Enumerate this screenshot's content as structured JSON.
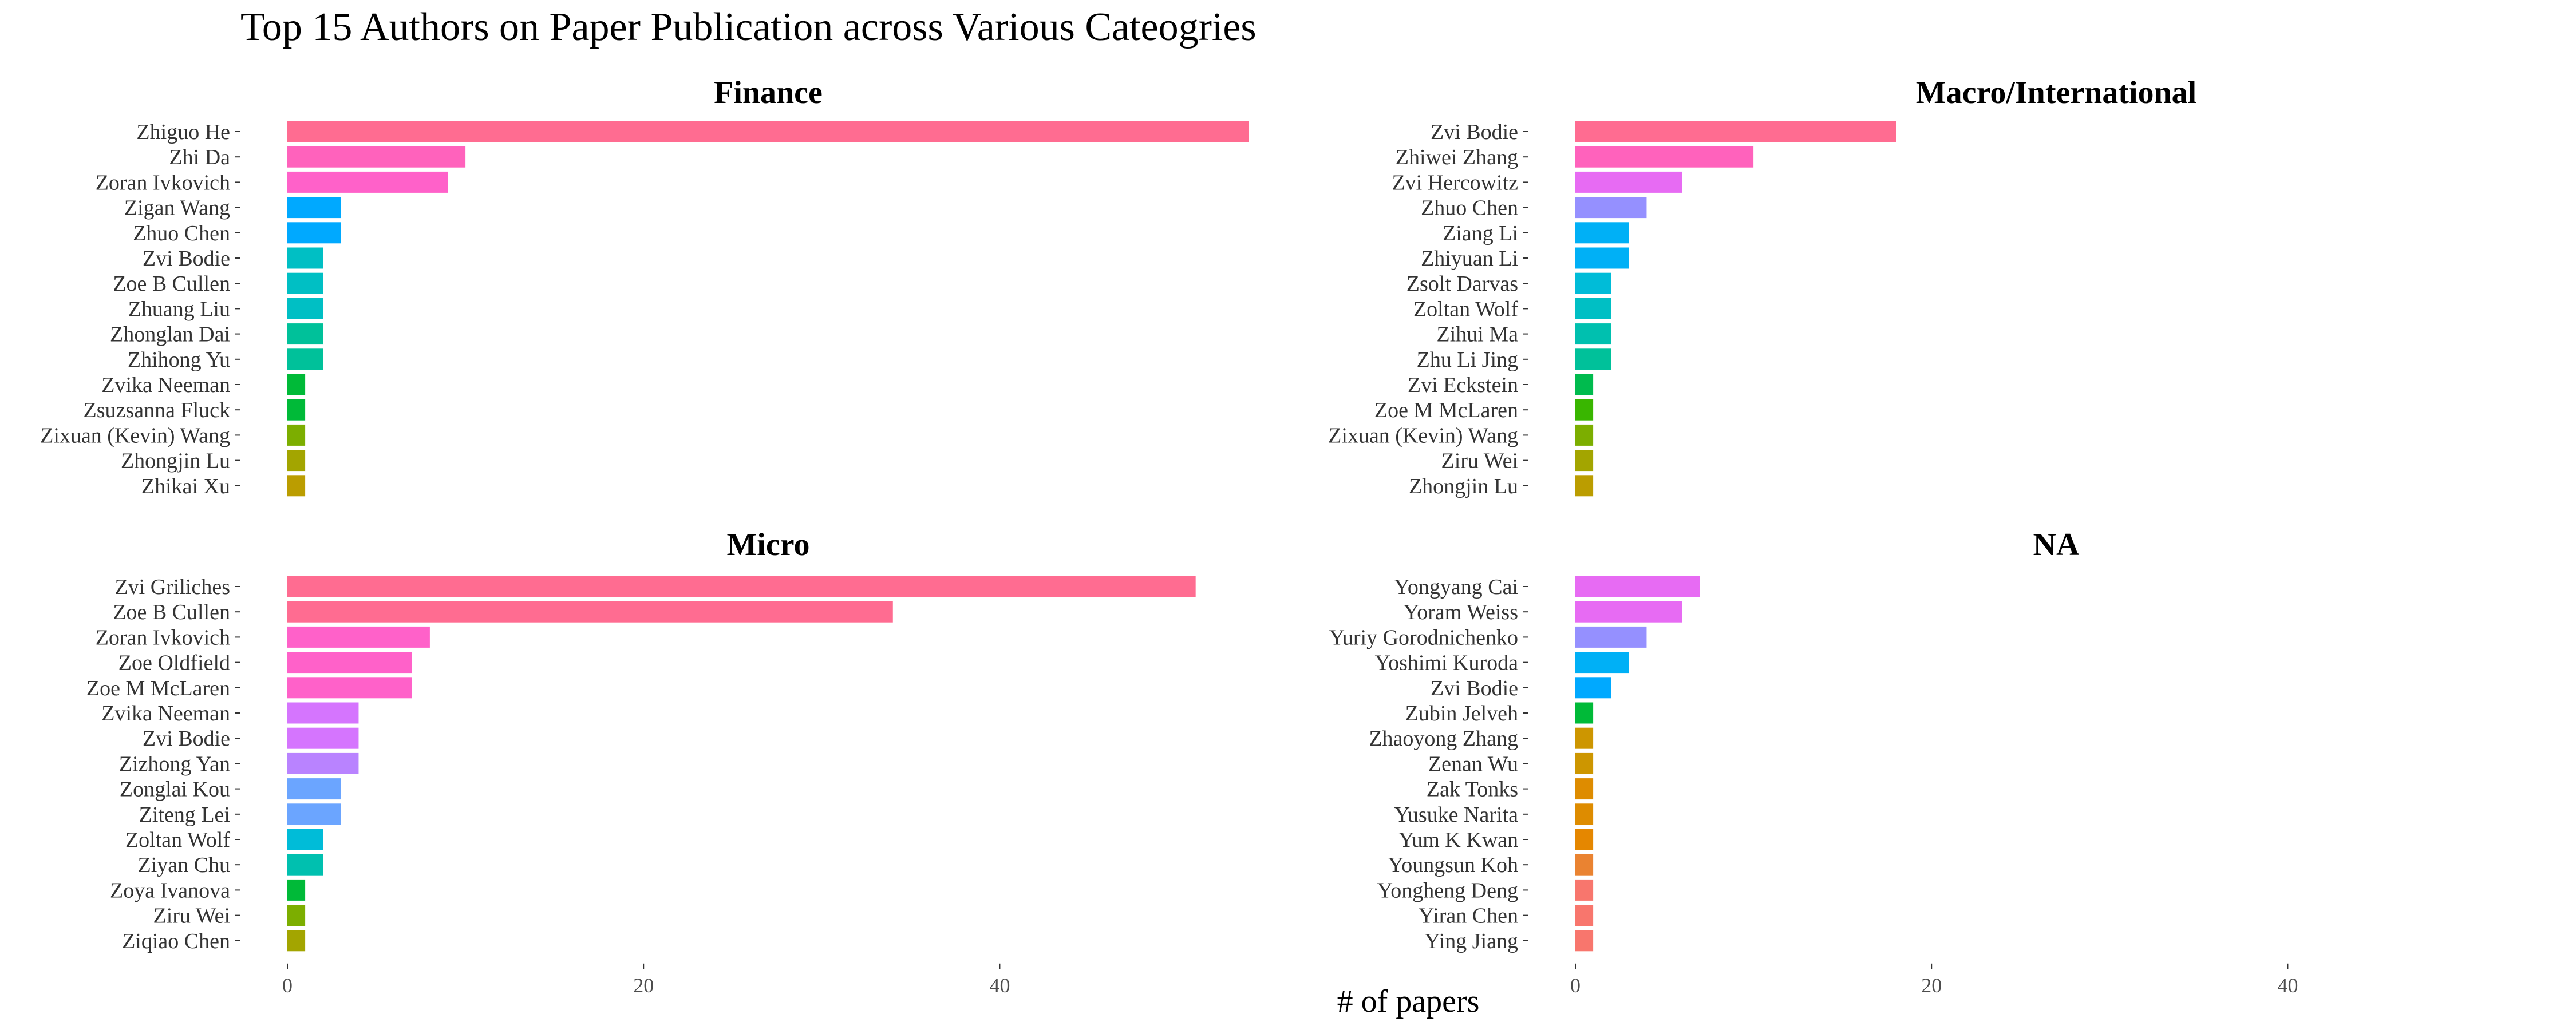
{
  "chart_data": {
    "type": "bar",
    "orientation": "horizontal",
    "title": "Top 15 Authors on Paper Publication across Various Cateogries",
    "xlabel": "# of papers",
    "ylabel": "",
    "xlim": [
      0,
      54
    ],
    "x_ticks": [
      "0",
      "20",
      "40"
    ],
    "grid": false,
    "legend": "none",
    "facets": [
      {
        "title": "Finance",
        "categories": [
          "Zhiguo He",
          "Zhi Da",
          "Zoran Ivkovich",
          "Zigan Wang",
          "Zhuo Chen",
          "Zvi Bodie",
          "Zoe B Cullen",
          "Zhuang Liu",
          "Zhonglan Dai",
          "Zhihong Yu",
          "Zvika Neeman",
          "Zsuzsanna Fluck",
          "Zixuan (Kevin) Wang",
          "Zhongjin Lu",
          "Zhikai Xu"
        ],
        "values": [
          54,
          10,
          9,
          3,
          3,
          2,
          2,
          2,
          2,
          2,
          1,
          1,
          1,
          1,
          1
        ],
        "colors": [
          "#FF6C91",
          "#FF62BC",
          "#FF61C9",
          "#00A9FF",
          "#00A9FF",
          "#00BFC4",
          "#00BFC4",
          "#00BFC4",
          "#00C19A",
          "#00C19A",
          "#00BA38",
          "#00BA38",
          "#7CAE00",
          "#A3A500",
          "#BB9D00"
        ]
      },
      {
        "title": "Macro/International",
        "categories": [
          "Zvi Bodie",
          "Zhiwei Zhang",
          "Zvi Hercowitz",
          "Zhuo Chen",
          "Ziang Li",
          "Zhiyuan Li",
          "Zsolt Darvas",
          "Zoltan Wolf",
          "Zihui Ma",
          "Zhu Li Jing",
          "Zvi Eckstein",
          "Zoe M McLaren",
          "Zixuan (Kevin) Wang",
          "Ziru Wei",
          "Zhongjin Lu"
        ],
        "values": [
          18,
          10,
          6,
          4,
          3,
          3,
          2,
          2,
          2,
          2,
          1,
          1,
          1,
          1,
          1
        ],
        "colors": [
          "#FF6C91",
          "#FF62BC",
          "#E76BF3",
          "#9590FF",
          "#00B0F6",
          "#00B0F6",
          "#00BCD8",
          "#00BFC4",
          "#00C0AF",
          "#00C19A",
          "#00BB4E",
          "#39B600",
          "#7CAE00",
          "#A3A500",
          "#BB9D00"
        ]
      },
      {
        "title": "Micro",
        "categories": [
          "Zvi Griliches",
          "Zoe B Cullen",
          "Zoran Ivkovich",
          "Zoe Oldfield",
          "Zoe M McLaren",
          "Zvika Neeman",
          "Zvi Bodie",
          "Zizhong Yan",
          "Zonglai Kou",
          "Ziteng Lei",
          "Zoltan Wolf",
          "Ziyan Chu",
          "Zoya Ivanova",
          "Ziru Wei",
          "Ziqiao Chen"
        ],
        "values": [
          51,
          34,
          8,
          7,
          7,
          4,
          4,
          4,
          3,
          3,
          2,
          2,
          1,
          1,
          1
        ],
        "colors": [
          "#FF6C91",
          "#FF6C91",
          "#FF61C9",
          "#FF61C9",
          "#FF61C9",
          "#D575FE",
          "#D575FE",
          "#B983FF",
          "#6BA5FF",
          "#6BA5FF",
          "#00BCD8",
          "#00C0AF",
          "#00BA38",
          "#7CAE00",
          "#A3A500"
        ]
      },
      {
        "title": "NA",
        "categories": [
          "Yongyang Cai",
          "Yoram Weiss",
          "Yuriy Gorodnichenko",
          "Yoshimi Kuroda",
          "Zvi Bodie",
          "Zubin Jelveh",
          "Zhaoyong Zhang",
          "Zenan Wu",
          "Zak Tonks",
          "Yusuke Narita",
          "Yum K Kwan",
          "Youngsun Koh",
          "Yongheng Deng",
          "Yiran Chen",
          "Ying Jiang"
        ],
        "values": [
          7,
          6,
          4,
          3,
          2,
          1,
          1,
          1,
          1,
          1,
          1,
          1,
          1,
          1,
          1
        ],
        "colors": [
          "#E76BF3",
          "#E76BF3",
          "#9590FF",
          "#00B0F6",
          "#00A9FF",
          "#00BA38",
          "#CD9600",
          "#CD9600",
          "#DE8C00",
          "#DE8C00",
          "#E58700",
          "#EA8331",
          "#F8766D",
          "#F8766D",
          "#F8766D"
        ]
      }
    ]
  }
}
